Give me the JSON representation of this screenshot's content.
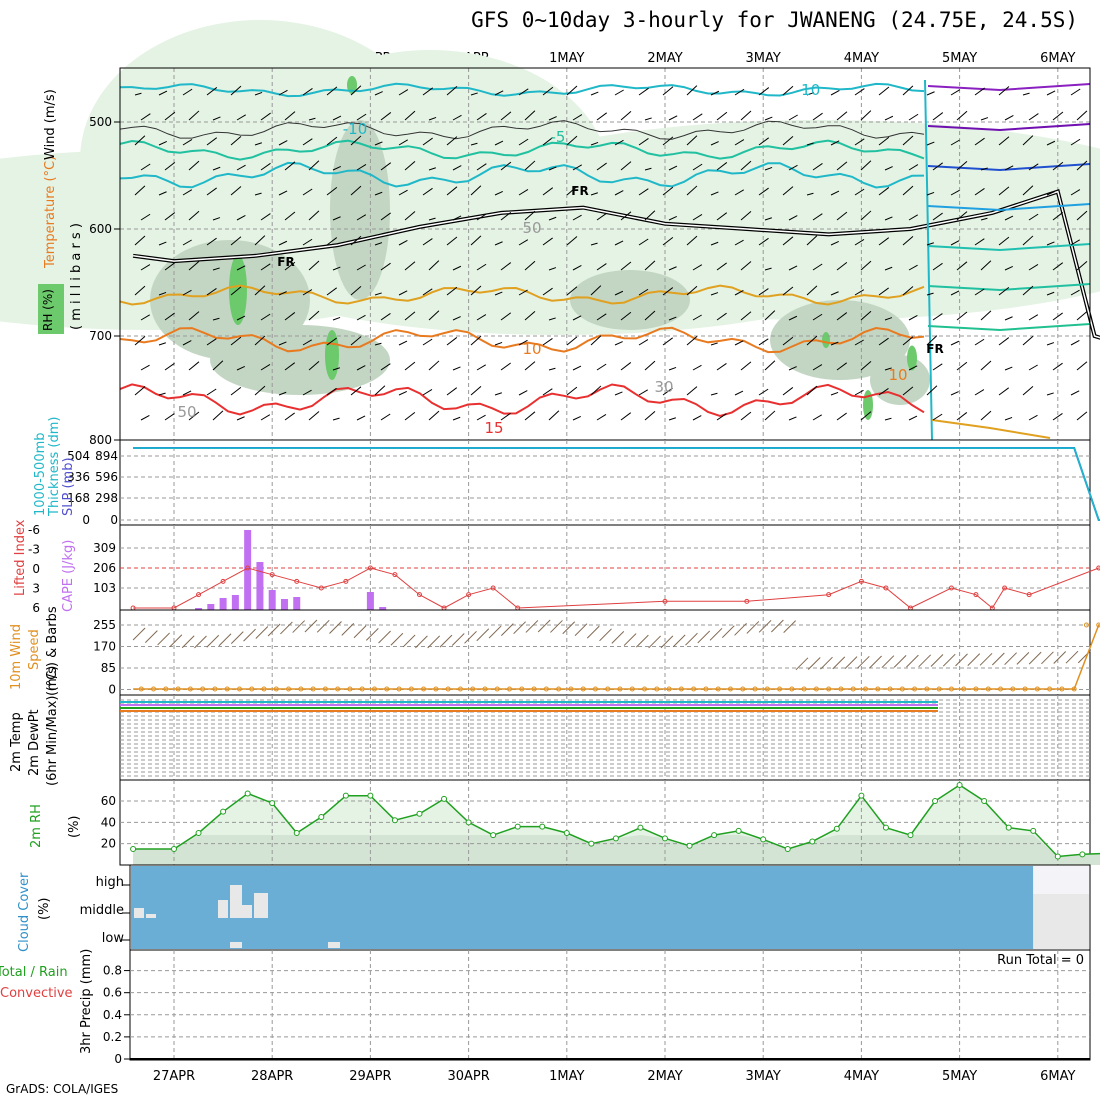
{
  "title": "GFS 0~10day 3-hourly for JWANENG (24.75E, 24.5S)",
  "footer": "GrADS: COLA/IGES",
  "time_axis": {
    "labels": [
      "27APR",
      "28APR",
      "29APR",
      "30APR",
      "1MAY",
      "2MAY",
      "3MAY",
      "4MAY",
      "5MAY",
      "6MAY"
    ],
    "start_day_index": 0
  },
  "colors": {
    "rh_light": "#e4f3e4",
    "rh_mid": "#c3d6c3",
    "rh_dark": "#6cc96c",
    "temp_15": "#e83030",
    "temp_10": "#e87a20",
    "temp_5": "#e0a020",
    "temp_m5": "#20c0a0",
    "temp_m10": "#20b8c8",
    "freezing": "#000000",
    "slp": "#2080e0",
    "cape_bar": "#c070f0",
    "li_line": "#e04040",
    "wind_line": "#e09020",
    "barb": "#806850",
    "rh2m_line": "#20a020",
    "cloud_fill": "#6aaed6",
    "cloud_gap": "#e8e8e8",
    "precip_zero": "#000000"
  },
  "panels": {
    "upper_air": {
      "ylabel_rh": "RH (%)",
      "ylabel_temp": "Temperature (°C)",
      "ylabel_wind": "Wind (m/s)",
      "ylabel_p": "( m i l l i b a r s )",
      "yticks": [
        500,
        600,
        700,
        800
      ],
      "contour_labels": [
        "-10",
        "-10",
        "-5",
        "FR",
        "FR",
        "FR",
        "10",
        "10",
        "15",
        "50",
        "50",
        "30"
      ]
    },
    "thickness": {
      "ylabel1": "1000-500mb",
      "ylabel2": "Thickness (dm)",
      "ylabel3": "SLP (mb)",
      "left_ticks": [
        "504",
        "336",
        "168",
        "0"
      ],
      "right_ticks": [
        "894",
        "596",
        "298",
        "0"
      ]
    },
    "cape": {
      "ylabel1": "Lifted Index",
      "ylabel2": "CAPE (J/kg)",
      "left_ticks": [
        "-6",
        "-3",
        "0",
        "3",
        "6"
      ],
      "right_ticks": [
        "309",
        "206",
        "103"
      ]
    },
    "wind10m": {
      "ylabel1": "10m Wind",
      "ylabel2": "Speed",
      "ylabel3": "(m/s) & Barbs",
      "ticks": [
        "255",
        "170",
        "85",
        "0"
      ]
    },
    "temp2m": {
      "ylabel1": "2m Temp",
      "ylabel2": "2m DewPt",
      "ylabel3": "(6hr Min/Max) (°C)"
    },
    "rh2m": {
      "ylabel1": "2m RH",
      "ylabel2": "(%)",
      "ticks": [
        "60",
        "40",
        "20"
      ]
    },
    "cloud": {
      "ylabel1": "Cloud Cover",
      "ylabel2": "(%)",
      "levels": [
        "high",
        "middle",
        "low"
      ]
    },
    "precip": {
      "ylabel1": "Total / Rain",
      "ylabel2": "Convective",
      "ylabel3": "3hr Precip (mm)",
      "ticks": [
        "0.8",
        "0.6",
        "0.4",
        "0.2",
        "0"
      ],
      "run_total": "Run Total = 0"
    }
  },
  "chart_data": {
    "type": "meteogram",
    "x_unit": "3-hourly steps from 27APR 00Z (x = hours)",
    "x_range_hours": [
      -10,
      236
    ],
    "freezing_level_mb": {
      "x": [
        -10,
        0,
        20,
        40,
        60,
        80,
        100,
        120,
        140,
        160,
        180,
        200,
        216,
        225,
        236
      ],
      "values": [
        625,
        630,
        625,
        615,
        598,
        585,
        580,
        595,
        600,
        605,
        600,
        585,
        565,
        700,
        713
      ]
    },
    "temp_10C_mb": {
      "x": [
        -10,
        20,
        60,
        100,
        140,
        180,
        210,
        225
      ],
      "values": [
        715,
        725,
        715,
        710,
        700,
        710,
        725,
        735
      ]
    },
    "thickness_dm": {
      "x": [
        -10,
        0,
        40,
        80,
        120,
        160,
        200,
        220,
        226,
        236
      ],
      "values": [
        560,
        558,
        559,
        560,
        559,
        559,
        559,
        559,
        0,
        0
      ]
    },
    "slp_mb": {
      "x": [
        -10,
        220,
        226,
        236
      ],
      "values": [
        894,
        894,
        0,
        0
      ]
    },
    "cape": {
      "x": [
        6,
        9,
        12,
        15,
        18,
        21,
        24,
        27,
        30,
        48,
        51
      ],
      "values": [
        10,
        30,
        60,
        75,
        400,
        240,
        100,
        55,
        65,
        90,
        15
      ]
    },
    "lifted_index": {
      "x": [
        -10,
        0,
        6,
        12,
        18,
        24,
        30,
        36,
        42,
        48,
        54,
        60,
        66,
        72,
        78,
        84,
        120,
        140,
        160,
        168,
        174,
        180,
        190,
        196,
        200,
        203,
        209,
        226,
        236
      ],
      "values": [
        6,
        6,
        4,
        2,
        0,
        1,
        2,
        3,
        2,
        0,
        1,
        4,
        6,
        4,
        3,
        6,
        5,
        5,
        4,
        2,
        3,
        6,
        3,
        4,
        6,
        3,
        4,
        0,
        0
      ]
    },
    "wind10m_speed": {
      "x": [
        -10,
        220,
        226,
        236
      ],
      "values": [
        0,
        0,
        255,
        255
      ]
    },
    "rh2m": {
      "x": [
        -10,
        0,
        6,
        12,
        18,
        24,
        30,
        36,
        42,
        48,
        54,
        60,
        66,
        72,
        78,
        84,
        90,
        96,
        102,
        108,
        114,
        120,
        126,
        132,
        138,
        144,
        150,
        156,
        162,
        168,
        174,
        180,
        186,
        192,
        198,
        204,
        210,
        216,
        222,
        228,
        236
      ],
      "values": [
        15,
        15,
        30,
        50,
        67,
        58,
        30,
        45,
        65,
        65,
        42,
        48,
        62,
        40,
        28,
        36,
        36,
        30,
        20,
        25,
        35,
        25,
        18,
        28,
        32,
        24,
        15,
        22,
        34,
        65,
        35,
        28,
        60,
        75,
        60,
        35,
        32,
        8,
        10,
        11,
        12
      ]
    },
    "cloud_cover": {
      "levels": [
        "high",
        "middle",
        "low"
      ],
      "mostly_overcast_until_hours": 210
    },
    "precip_3hr_mm": {
      "values": [
        0
      ],
      "run_total": 0
    }
  }
}
